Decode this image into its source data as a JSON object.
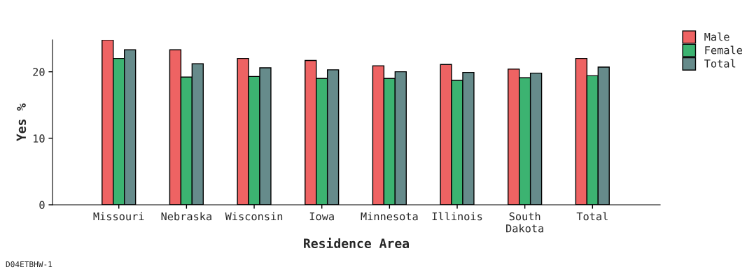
{
  "chart_data": {
    "type": "bar",
    "xlabel": "Residence Area",
    "ylabel": "Yes %",
    "categories": [
      "Missouri",
      "Nebraska",
      "Wisconsin",
      "Iowa",
      "Minnesota",
      "Illinois",
      "South\nDakota",
      "Total"
    ],
    "series": [
      {
        "name": "Male",
        "color": "#ee6363",
        "values": [
          24.8,
          23.3,
          22.0,
          21.7,
          20.9,
          21.1,
          20.4,
          22.0
        ]
      },
      {
        "name": "Female",
        "color": "#3cb371",
        "values": [
          22.0,
          19.2,
          19.3,
          19.0,
          19.0,
          18.7,
          19.1,
          19.4
        ]
      },
      {
        "name": "Total",
        "color": "#668b8b",
        "values": [
          23.3,
          21.2,
          20.6,
          20.3,
          20.0,
          19.9,
          19.8,
          20.7
        ]
      }
    ],
    "ylim": [
      0,
      24.8
    ],
    "yticks": [
      0,
      10,
      20
    ],
    "grid": false,
    "legend": "top right",
    "annotations": [
      "D04ETBHW-1"
    ]
  }
}
